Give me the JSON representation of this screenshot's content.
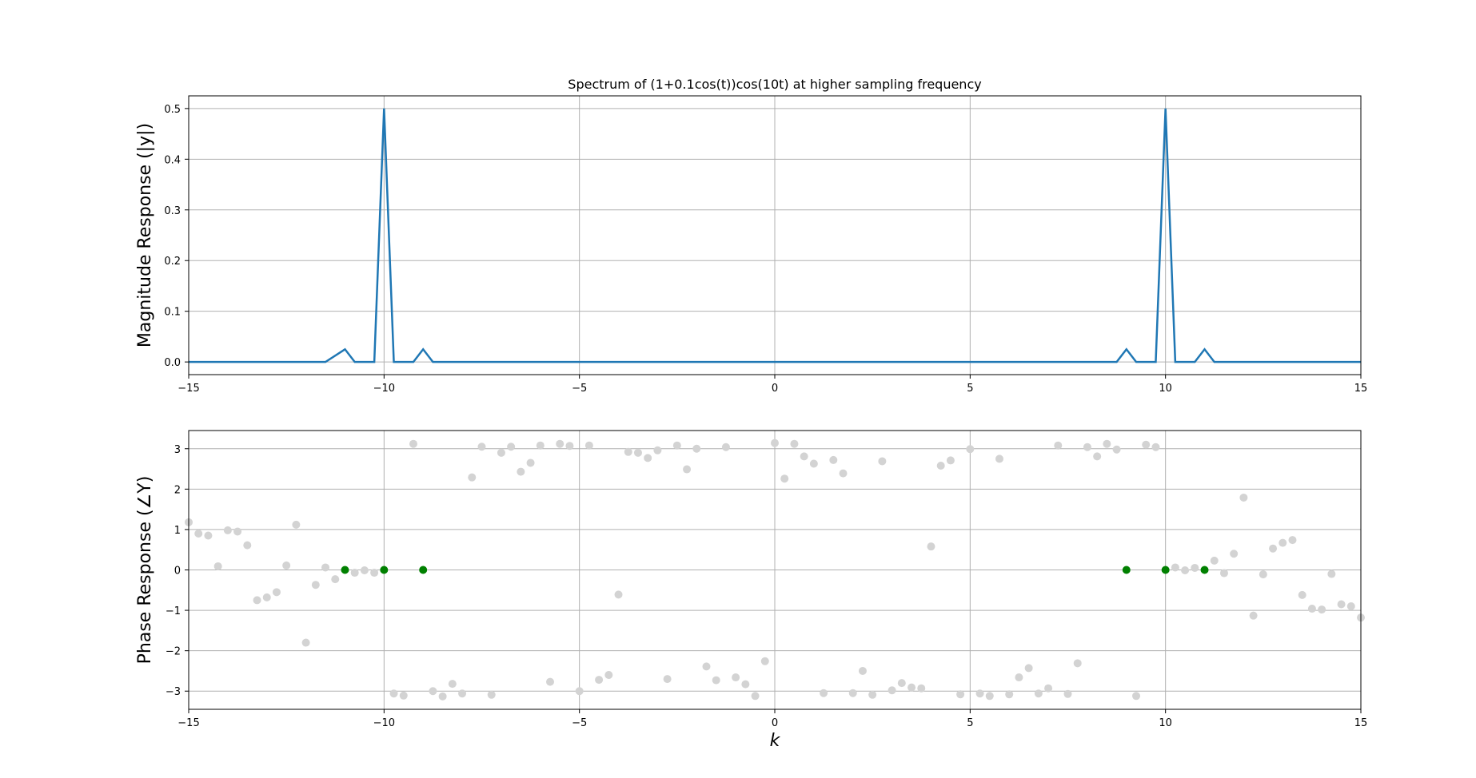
{
  "chart_data": [
    {
      "type": "line",
      "title": "Spectrum of (1+0.1cos(t))cos(10t) at higher sampling frequency",
      "xlabel": "",
      "ylabel": "Magnitude Response (|y|)",
      "xlim": [
        -15,
        15
      ],
      "ylim": [
        -0.025,
        0.525
      ],
      "xticks": [
        -15,
        -10,
        -5,
        0,
        5,
        10,
        15
      ],
      "xtick_labels": [
        "−15",
        "−10",
        "−5",
        "0",
        "5",
        "10",
        "15"
      ],
      "yticks": [
        0.0,
        0.1,
        0.2,
        0.3,
        0.4,
        0.5
      ],
      "ytick_labels": [
        "0.0",
        "0.1",
        "0.2",
        "0.3",
        "0.4",
        "0.5"
      ],
      "grid": true,
      "line_color": "#1f77b4",
      "series": [
        {
          "x": [
            -15,
            -11.5,
            -11,
            -10.75,
            -10.25,
            -10,
            -9.75,
            -9.25,
            -9,
            -8.75,
            8.75,
            9,
            9.25,
            9.75,
            10,
            10.25,
            10.75,
            11,
            11.25,
            15
          ],
          "y": [
            0,
            0,
            0.025,
            0,
            0,
            0.5,
            0,
            0,
            0.025,
            0,
            0,
            0.025,
            0,
            0,
            0.5,
            0,
            0,
            0.025,
            0,
            0
          ]
        }
      ]
    },
    {
      "type": "scatter",
      "title": "",
      "xlabel": "k",
      "ylabel": "Phase Response (∠Y)",
      "xlim": [
        -15,
        15
      ],
      "ylim": [
        -3.45,
        3.45
      ],
      "xticks": [
        -15,
        -10,
        -5,
        0,
        5,
        10,
        15
      ],
      "xtick_labels": [
        "−15",
        "−10",
        "−5",
        "0",
        "5",
        "10",
        "15"
      ],
      "yticks": [
        -3,
        -2,
        -1,
        0,
        1,
        2,
        3
      ],
      "ytick_labels": [
        "−3",
        "−2",
        "−1",
        "0",
        "1",
        "2",
        "3"
      ],
      "grid": true,
      "background_color": "#d3d3d3",
      "highlight_color": "#008000",
      "series": [
        {
          "x": [
            -15,
            -14.75,
            -14.5,
            -14.25,
            -14,
            -13.75,
            -13.5,
            -13.25,
            -13,
            -12.75,
            -12.5,
            -12.25,
            -12,
            -11.75,
            -11.5,
            -11.25,
            -10.75,
            -10.5,
            -10.25,
            -9.75,
            -9.5,
            -9.25,
            -8.75,
            -8.5,
            -8.25,
            -8,
            -7.75,
            -7.5,
            -7.25,
            -7,
            -6.75,
            -6.5,
            -6.25,
            -6,
            -5.75,
            -5.5,
            -5.25,
            -5,
            -4.75,
            -4.5,
            -4.25,
            -4,
            -3.75,
            -3.5,
            -3.25,
            -3,
            -2.75,
            -2.5,
            -2.25,
            -2,
            -1.75,
            -1.5,
            -1.25,
            -1,
            -0.75,
            -0.5,
            -0.25,
            0,
            0.25,
            0.5,
            0.75,
            1,
            1.25,
            1.5,
            1.75,
            2,
            2.25,
            2.5,
            2.75,
            3,
            3.25,
            3.5,
            3.75,
            4,
            4.25,
            4.5,
            4.75,
            5,
            5.25,
            5.5,
            5.75,
            6,
            6.25,
            6.5,
            6.75,
            7,
            7.25,
            7.5,
            7.75,
            8,
            8.25,
            8.5,
            8.75,
            9.25,
            9.5,
            9.75,
            10.25,
            10.5,
            10.75,
            11.25,
            11.5,
            11.75,
            12,
            12.25,
            12.5,
            12.75,
            13,
            13.25,
            13.5,
            13.75,
            14,
            14.25,
            14.5,
            14.75,
            15
          ],
          "y": [
            1.18,
            0.9,
            0.85,
            0.09,
            0.98,
            0.95,
            0.61,
            -0.75,
            -0.68,
            -0.55,
            0.11,
            1.12,
            -1.8,
            -0.37,
            0.06,
            -0.23,
            -0.07,
            -0.01,
            -0.07,
            -3.06,
            -3.11,
            3.12,
            -3.0,
            -3.13,
            -2.82,
            -3.06,
            2.29,
            3.05,
            -3.09,
            2.9,
            3.05,
            2.43,
            2.65,
            3.08,
            -2.77,
            3.12,
            3.07,
            -3.0,
            3.08,
            -2.72,
            -2.6,
            -0.61,
            2.92,
            2.9,
            2.77,
            2.96,
            -2.7,
            3.08,
            2.49,
            3.0,
            -2.39,
            -2.73,
            3.04,
            -2.66,
            -2.83,
            -3.12,
            -2.26,
            3.14,
            2.26,
            3.12,
            2.81,
            2.63,
            -3.05,
            2.72,
            2.39,
            -3.05,
            -2.5,
            -3.09,
            2.69,
            -2.98,
            -2.8,
            -2.91,
            -2.93,
            0.58,
            2.58,
            2.71,
            -3.08,
            2.99,
            -3.06,
            -3.12,
            2.75,
            -3.08,
            -2.66,
            -2.43,
            -3.06,
            -2.93,
            3.08,
            -3.07,
            -2.31,
            3.04,
            2.81,
            3.12,
            2.98,
            -3.12,
            3.1,
            3.04,
            0.06,
            -0.01,
            0.05,
            0.23,
            -0.08,
            0.4,
            1.79,
            -1.13,
            -0.11,
            0.53,
            0.67,
            0.74,
            -0.62,
            -0.96,
            -0.98,
            -0.1,
            -0.85,
            -0.9,
            -1.18
          ]
        },
        {
          "name": "",
          "x": [
            -11,
            -10,
            -9,
            9,
            10,
            11
          ],
          "y": [
            0,
            0,
            0,
            0,
            0,
            0
          ]
        }
      ]
    }
  ]
}
